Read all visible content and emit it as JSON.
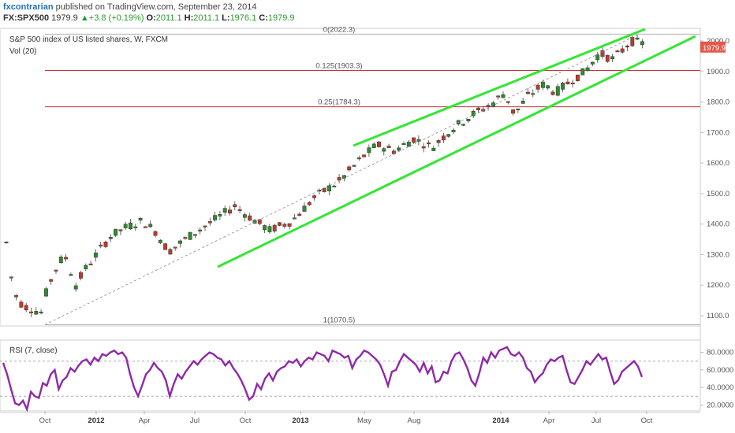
{
  "header": {
    "author": "fxcontrarian",
    "published": "published on TradingView.com, September 23, 2014",
    "symbol": "FX:SPX500",
    "last": "1979.9",
    "change": "+3.8 (+0.19%)",
    "open_label": "O:",
    "open": "2011.1",
    "high_label": "H:",
    "high": "2011.1",
    "low_label": "L:",
    "low": "1976.1",
    "close_label": "C:",
    "close": "1979.9"
  },
  "chart_data": {
    "type": "candlestick",
    "title": "S&P 500 index of US listed shares, W, FXCM",
    "volume_label": "Vol (20)",
    "price_axis": {
      "ticks": [
        "2000.0",
        "1900.0",
        "1800.0",
        "1700.0",
        "1600.0",
        "1500.0",
        "1400.0",
        "1300.0",
        "1200.0",
        "1100.0"
      ],
      "range": [
        1050,
        2080
      ]
    },
    "last_price_label": "1979.9",
    "time_axis": [
      "Oct",
      "2012",
      "Apr",
      "Jul",
      "Oct",
      "2013",
      "May",
      "Aug",
      "2014",
      "Apr",
      "Jul",
      "Oct"
    ],
    "bold_time_labels": [
      "2012",
      "2013",
      "2014"
    ],
    "fib_levels": [
      {
        "label": "0(2022.3)",
        "price": 2022.3
      },
      {
        "label": "0.125(1903.3)",
        "price": 1903.3
      },
      {
        "label": "0.25(1784.3)",
        "price": 1784.3
      },
      {
        "label": "1(1070.5)",
        "price": 1070.5
      }
    ],
    "trend_lines": [
      {
        "name": "upper-channel",
        "from": [
          "2013-05",
          1655
        ],
        "to": [
          "2014-09",
          2035
        ]
      },
      {
        "name": "lower-channel",
        "from": [
          "2012-07",
          1262
        ],
        "to": [
          "2014-11",
          2015
        ]
      }
    ],
    "rsi": {
      "label": "RSI (7, close)",
      "ticks": [
        "80.0000",
        "60.0000",
        "40.0000",
        "20.0000"
      ],
      "levels": [
        70,
        30
      ],
      "values": [
        68,
        55,
        38,
        22,
        20,
        25,
        15,
        35,
        30,
        28,
        45,
        42,
        55,
        60,
        38,
        48,
        52,
        62,
        58,
        65,
        70,
        72,
        66,
        74,
        70,
        78,
        76,
        80,
        82,
        78,
        80,
        74,
        55,
        40,
        30,
        42,
        55,
        60,
        68,
        62,
        58,
        48,
        30,
        44,
        55,
        50,
        58,
        64,
        70,
        66,
        72,
        76,
        80,
        78,
        74,
        72,
        65,
        70,
        62,
        56,
        48,
        38,
        26,
        30,
        44,
        38,
        50,
        56,
        48,
        58,
        62,
        64,
        70,
        68,
        72,
        64,
        70,
        74,
        72,
        80,
        78,
        76,
        70,
        82,
        80,
        78,
        74,
        76,
        62,
        72,
        76,
        82,
        80,
        76,
        72,
        66,
        55,
        42,
        58,
        60,
        70,
        78,
        74,
        70,
        66,
        58,
        68,
        56,
        64,
        46,
        48,
        58,
        56,
        70,
        78,
        80,
        72,
        62,
        48,
        42,
        56,
        74,
        68,
        80,
        74,
        82,
        84,
        86,
        78,
        76,
        80,
        74,
        62,
        58,
        46,
        52,
        56,
        66,
        72,
        70,
        74,
        76,
        60,
        46,
        44,
        52,
        60,
        70,
        66,
        72,
        78,
        72,
        74,
        58,
        44,
        48,
        58,
        62,
        66,
        70,
        64,
        52
      ]
    }
  },
  "colors": {
    "up": "#2e8b2e",
    "down": "#c0392b",
    "fib": "#cc3333",
    "channel": "#33e633",
    "rsi": "#8e2aa8",
    "price_badge": "#e05a4a"
  }
}
